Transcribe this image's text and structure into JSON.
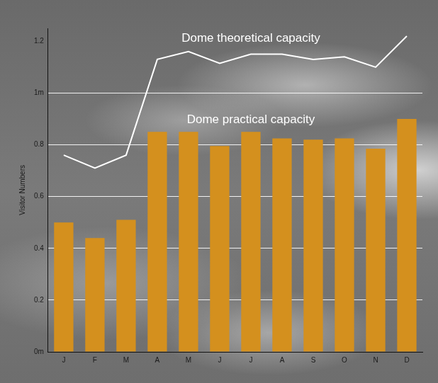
{
  "chart_data": {
    "type": "bar",
    "y_label": "Visitor Numbers",
    "categories": [
      "J",
      "F",
      "M",
      "A",
      "M",
      "J",
      "J",
      "A",
      "S",
      "O",
      "N",
      "D"
    ],
    "series": [
      {
        "name": "Dome theoretical capacity",
        "type": "line",
        "color": "#ffffff",
        "values": [
          0.76,
          0.71,
          0.76,
          1.13,
          1.16,
          1.115,
          1.15,
          1.15,
          1.13,
          1.14,
          1.1,
          1.22
        ]
      },
      {
        "name": "Dome practical capacity",
        "type": "bar",
        "color": "#d4901e",
        "values": [
          0.5,
          0.44,
          0.51,
          0.85,
          0.85,
          0.795,
          0.85,
          0.825,
          0.82,
          0.825,
          0.785,
          0.9
        ]
      }
    ],
    "ylim": [
      0,
      1.25
    ],
    "yticks": [
      {
        "value": 0,
        "label": "0m"
      },
      0.2,
      0.4,
      0.6,
      0.8,
      {
        "value": 1,
        "label": "1m"
      },
      1.2
    ],
    "grid": true
  }
}
